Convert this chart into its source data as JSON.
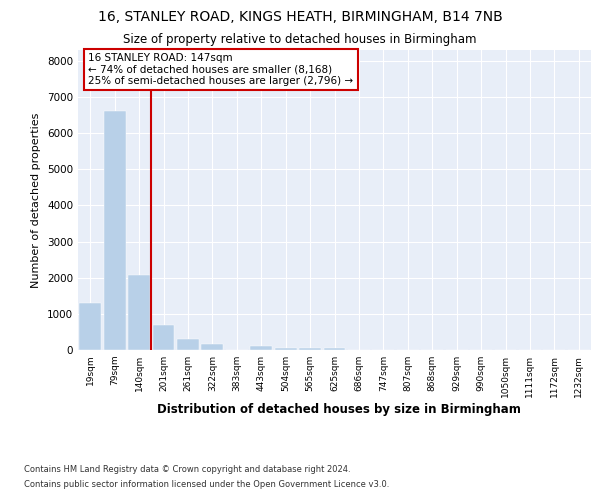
{
  "title1": "16, STANLEY ROAD, KINGS HEATH, BIRMINGHAM, B14 7NB",
  "title2": "Size of property relative to detached houses in Birmingham",
  "xlabel": "Distribution of detached houses by size in Birmingham",
  "ylabel": "Number of detached properties",
  "footnote1": "Contains HM Land Registry data © Crown copyright and database right 2024.",
  "footnote2": "Contains public sector information licensed under the Open Government Licence v3.0.",
  "annotation_title": "16 STANLEY ROAD: 147sqm",
  "annotation_line1": "← 74% of detached houses are smaller (8,168)",
  "annotation_line2": "25% of semi-detached houses are larger (2,796) →",
  "bar_color": "#b8d0e8",
  "marker_color": "#cc0000",
  "background_color": "#e8eef8",
  "categories": [
    "19sqm",
    "79sqm",
    "140sqm",
    "201sqm",
    "261sqm",
    "322sqm",
    "383sqm",
    "443sqm",
    "504sqm",
    "565sqm",
    "625sqm",
    "686sqm",
    "747sqm",
    "807sqm",
    "868sqm",
    "929sqm",
    "990sqm",
    "1050sqm",
    "1111sqm",
    "1172sqm",
    "1232sqm"
  ],
  "values": [
    1300,
    6600,
    2080,
    680,
    300,
    155,
    0,
    100,
    65,
    65,
    65,
    0,
    0,
    0,
    0,
    0,
    0,
    0,
    0,
    0,
    0
  ],
  "marker_bar_index": 2,
  "ylim": [
    0,
    8300
  ],
  "yticks": [
    0,
    1000,
    2000,
    3000,
    4000,
    5000,
    6000,
    7000,
    8000
  ]
}
